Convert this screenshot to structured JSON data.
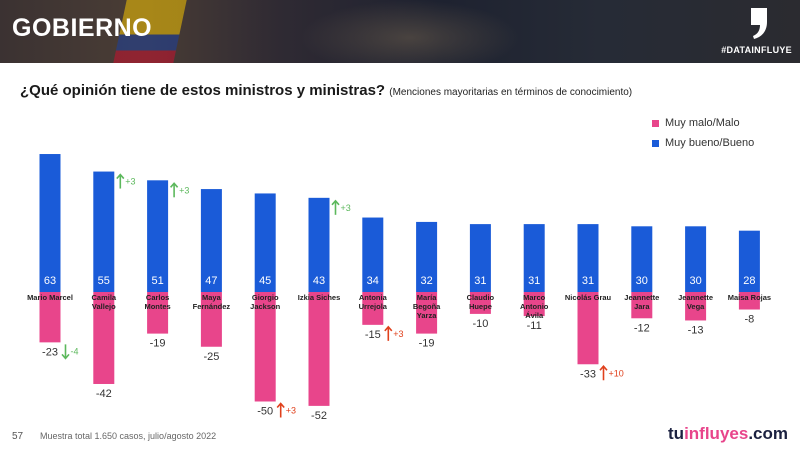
{
  "header": {
    "title": "GOBIERNO",
    "tag": "#DATAINFLUYE"
  },
  "question": {
    "main": "¿Qué opinión tiene de estos ministros y ministras?",
    "sub": "(Menciones mayoritarias en términos de conocimiento)"
  },
  "legend": [
    {
      "label": "Muy malo/Malo",
      "color": "#e8458b"
    },
    {
      "label": "Muy bueno/Bueno",
      "color": "#1a5bd8"
    }
  ],
  "footer": {
    "page": "57",
    "note": "Muestra total 1.650 casos, julio/agosto 2022",
    "logo_pre": "tu",
    "logo_accent": "influyes",
    "logo_post": ".com"
  },
  "colors": {
    "positive": "#1a5bd8",
    "negative": "#e8458b",
    "arrow_up_green": "#5cb85c",
    "arrow_down_green": "#5cb85c",
    "arrow_up_red": "#e0401c"
  },
  "chart_data": {
    "type": "bar",
    "categories": [
      [
        "Mario Marcel"
      ],
      [
        "Camila",
        "Vallejo"
      ],
      [
        "Carlos",
        "Montes"
      ],
      [
        "Maya",
        "Fernández"
      ],
      [
        "Giorgio",
        "Jackson"
      ],
      [
        "Izkia Siches"
      ],
      [
        "Antonia",
        "Urrejola"
      ],
      [
        "María",
        "Begoña",
        "Yarza"
      ],
      [
        "Claudio",
        "Huepe"
      ],
      [
        "Marco",
        "Antonio",
        "Ávila"
      ],
      [
        "Nicolás Grau"
      ],
      [
        "Jeannette",
        "Jara"
      ],
      [
        "Jeannette",
        "Vega"
      ],
      [
        "Maisa Rojas"
      ]
    ],
    "series": [
      {
        "name": "Muy bueno/Bueno",
        "values": [
          63,
          55,
          51,
          47,
          45,
          43,
          34,
          32,
          31,
          31,
          31,
          30,
          30,
          28
        ]
      },
      {
        "name": "Muy malo/Malo",
        "values": [
          -23,
          -42,
          -19,
          -25,
          -50,
          -52,
          -15,
          -19,
          -10,
          -11,
          -33,
          -12,
          -13,
          -8
        ]
      }
    ],
    "positive_labels": [
      "63",
      "55",
      "51",
      "47",
      "45",
      "43",
      "34",
      "32",
      "31",
      "31",
      "31",
      "30",
      "30",
      "28"
    ],
    "negative_labels": [
      "-23",
      "-42",
      "-19",
      "-25",
      "-50",
      "-52",
      "-15",
      "-19",
      "-10",
      "-11",
      "-33",
      "-12",
      "-13",
      "-8"
    ],
    "changes": [
      {
        "index": 0,
        "series": "Muy malo/Malo",
        "text": "-4",
        "direction": "down",
        "color": "#5cb85c"
      },
      {
        "index": 1,
        "series": "Muy bueno/Bueno",
        "text": "+3",
        "direction": "up",
        "color": "#5cb85c"
      },
      {
        "index": 2,
        "series": "Muy bueno/Bueno",
        "text": "+3",
        "direction": "up",
        "color": "#5cb85c"
      },
      {
        "index": 5,
        "series": "Muy bueno/Bueno",
        "text": "+3",
        "direction": "up",
        "color": "#5cb85c"
      },
      {
        "index": 4,
        "series": "Muy malo/Malo",
        "text": "+3",
        "direction": "up",
        "color": "#e0401c"
      },
      {
        "index": 6,
        "series": "Muy malo/Malo",
        "text": "+3",
        "direction": "up",
        "color": "#e0401c"
      },
      {
        "index": 10,
        "series": "Muy malo/Malo",
        "text": "+10",
        "direction": "up",
        "color": "#e0401c"
      }
    ],
    "ylim": [
      -55,
      65
    ],
    "grid": false
  }
}
